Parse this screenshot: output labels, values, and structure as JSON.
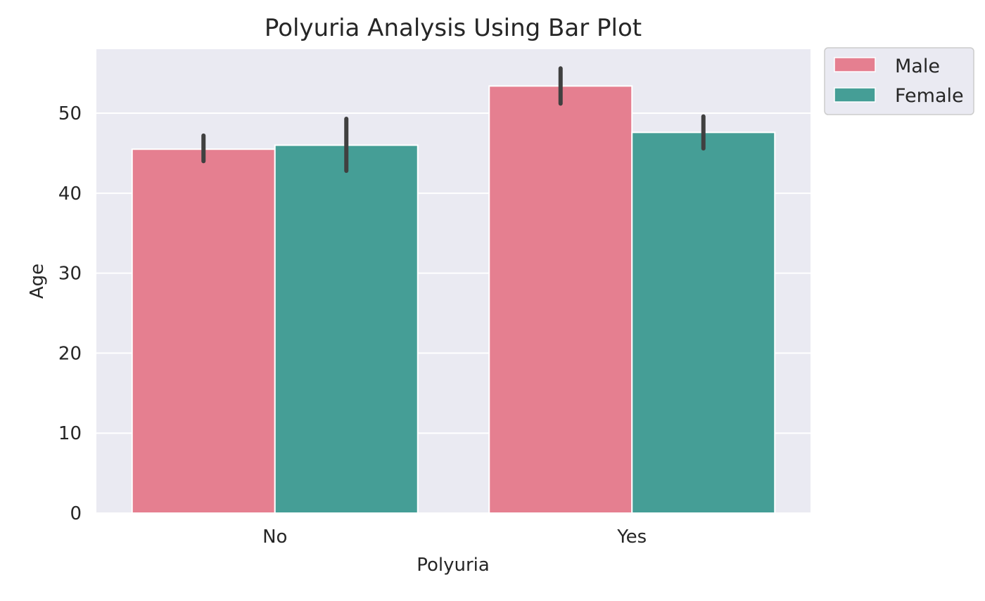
{
  "chart_data": {
    "type": "bar",
    "title": "Polyuria Analysis Using Bar Plot",
    "xlabel": "Polyuria",
    "ylabel": "Age",
    "categories": [
      "No",
      "Yes"
    ],
    "series": [
      {
        "name": "Male",
        "color": "#e57f90",
        "values": [
          45.5,
          53.4
        ],
        "error_low": [
          44.0,
          51.2
        ],
        "error_high": [
          47.2,
          55.6
        ]
      },
      {
        "name": "Female",
        "color": "#459e96",
        "values": [
          46.0,
          47.6
        ],
        "error_low": [
          42.8,
          45.6
        ],
        "error_high": [
          49.3,
          49.6
        ]
      }
    ],
    "ylim": [
      0,
      58
    ],
    "yticks": [
      0,
      10,
      20,
      30,
      40,
      50
    ],
    "grid": true,
    "legend_placement": "outside-top-right",
    "colors": {
      "plot_background": "#eaeaf2",
      "gridline": "#ffffff",
      "error_bar": "#404040"
    }
  }
}
